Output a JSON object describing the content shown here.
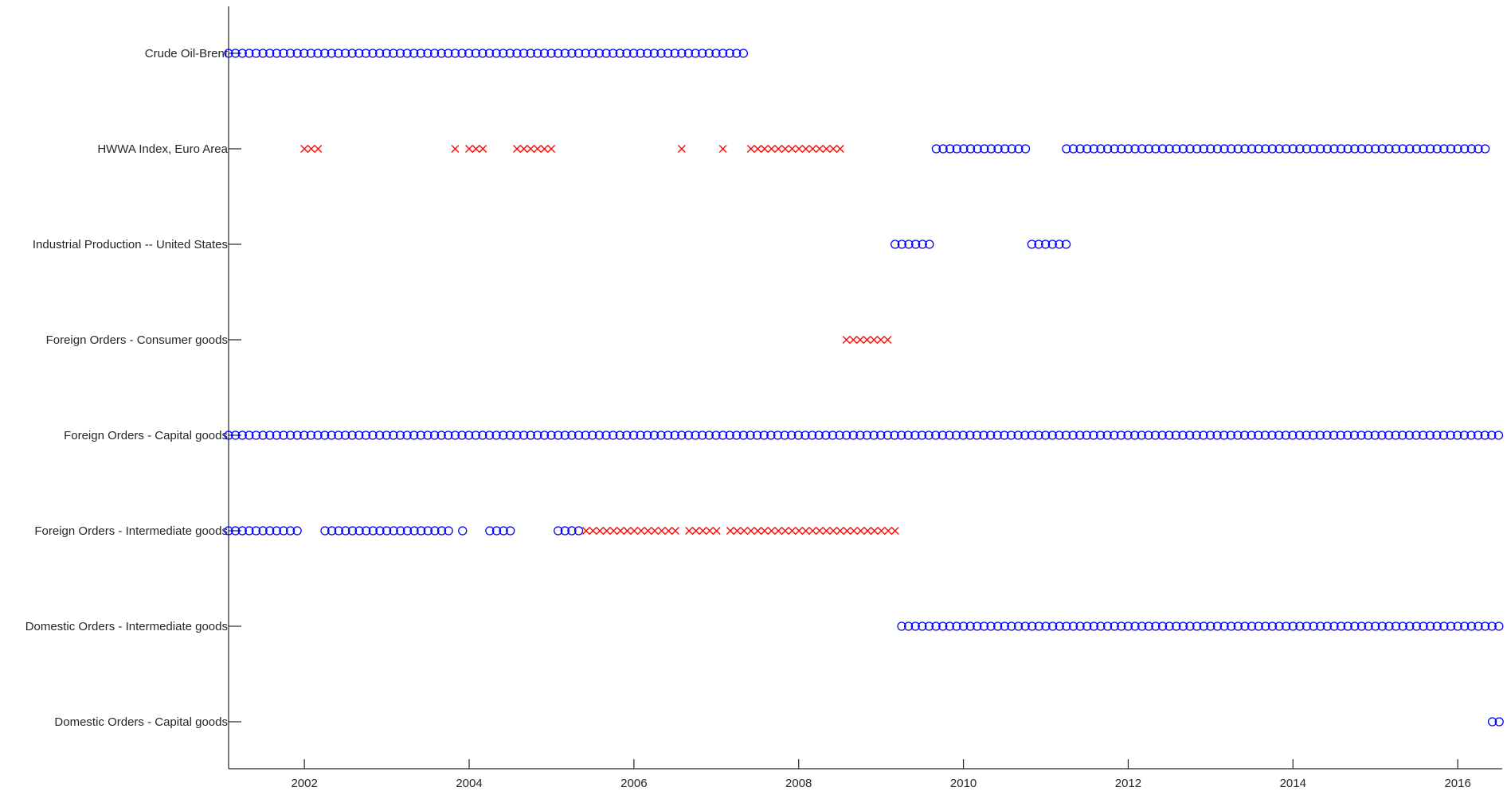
{
  "chart_data": {
    "type": "scatter",
    "title": "",
    "xlabel": "",
    "ylabel": "",
    "xlim": [
      2001.08,
      2016.54
    ],
    "x_ticks": [
      "2002",
      "2004",
      "2006",
      "2008",
      "2010",
      "2012",
      "2014",
      "2016"
    ],
    "grid": false,
    "categories": [
      "Crude Oil-Brent",
      "HWWA Index, Euro Area",
      "Industrial Production -- United States",
      "Foreign Orders - Consumer goods",
      "Foreign Orders - Capital goods",
      "Foreign Orders - Intermediate goods",
      "Domestic Orders - Intermediate goods",
      "Domestic Orders - Capital goods"
    ],
    "markers": {
      "circle_color": "#0000ff",
      "cross_color": "#ff0000"
    },
    "monthly_step": 0.08333,
    "rows": [
      {
        "category": "Crude Oil-Brent",
        "runs": [
          {
            "marker": "circle",
            "from": 2001.08,
            "to": 2007.33
          }
        ]
      },
      {
        "category": "HWWA Index, Euro Area",
        "runs": [
          {
            "marker": "cross",
            "from": 2002.0,
            "to": 2002.17
          },
          {
            "marker": "cross",
            "from": 2003.83,
            "to": 2003.83
          },
          {
            "marker": "cross",
            "from": 2004.0,
            "to": 2004.17
          },
          {
            "marker": "cross",
            "from": 2004.58,
            "to": 2005.0
          },
          {
            "marker": "cross",
            "from": 2006.58,
            "to": 2006.58
          },
          {
            "marker": "cross",
            "from": 2007.08,
            "to": 2007.08
          },
          {
            "marker": "cross",
            "from": 2007.42,
            "to": 2008.5
          },
          {
            "marker": "circle",
            "from": 2009.67,
            "to": 2010.75
          },
          {
            "marker": "circle",
            "from": 2011.25,
            "to": 2016.33
          }
        ]
      },
      {
        "category": "Industrial Production -- United States",
        "runs": [
          {
            "marker": "circle",
            "from": 2009.17,
            "to": 2009.58
          },
          {
            "marker": "circle",
            "from": 2010.83,
            "to": 2011.25
          }
        ]
      },
      {
        "category": "Foreign Orders - Consumer goods",
        "runs": [
          {
            "marker": "cross",
            "from": 2008.58,
            "to": 2009.08
          }
        ]
      },
      {
        "category": "Foreign Orders - Capital goods",
        "runs": [
          {
            "marker": "circle",
            "from": 2001.08,
            "to": 2016.5
          }
        ]
      },
      {
        "category": "Foreign Orders - Intermediate goods",
        "runs": [
          {
            "marker": "circle",
            "from": 2001.08,
            "to": 2001.92
          },
          {
            "marker": "circle",
            "from": 2002.25,
            "to": 2003.75
          },
          {
            "marker": "circle",
            "from": 2003.92,
            "to": 2003.92
          },
          {
            "marker": "circle",
            "from": 2004.25,
            "to": 2004.5
          },
          {
            "marker": "circle",
            "from": 2005.08,
            "to": 2005.33
          },
          {
            "marker": "cross",
            "from": 2005.42,
            "to": 2006.5
          },
          {
            "marker": "cross",
            "from": 2006.67,
            "to": 2007.0
          },
          {
            "marker": "cross",
            "from": 2007.17,
            "to": 2009.17
          }
        ]
      },
      {
        "category": "Domestic Orders - Intermediate goods",
        "runs": [
          {
            "marker": "circle",
            "from": 2009.25,
            "to": 2016.5
          }
        ]
      },
      {
        "category": "Domestic Orders - Capital goods",
        "runs": [
          {
            "marker": "circle",
            "from": 2016.42,
            "to": 2016.5
          }
        ]
      }
    ]
  }
}
